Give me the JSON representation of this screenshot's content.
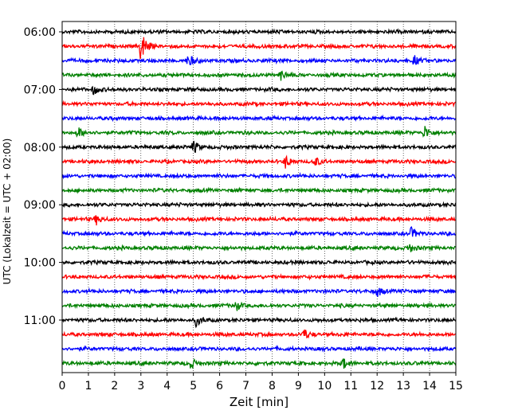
{
  "chart_data": {
    "type": "line",
    "title": "",
    "xlabel": "Zeit  [min]",
    "ylabel": "UTC (Lokalzeit = UTC + 02:00)",
    "xlim": [
      0,
      15
    ],
    "x_ticks": [
      "0",
      "1",
      "2",
      "3",
      "4",
      "5",
      "6",
      "7",
      "8",
      "9",
      "10",
      "11",
      "12",
      "13",
      "14",
      "15"
    ],
    "y_ticks": [
      "06:00",
      "07:00",
      "08:00",
      "09:00",
      "10:00",
      "11:00"
    ],
    "grid": "vertical dotted",
    "row_colors": [
      "#000000",
      "#ff0000",
      "#0000ff",
      "#008000"
    ],
    "rows": [
      "06:00",
      "06:15",
      "06:30",
      "06:45",
      "07:00",
      "07:15",
      "07:30",
      "07:45",
      "08:00",
      "08:15",
      "08:30",
      "08:45",
      "09:00",
      "09:15",
      "09:30",
      "09:45",
      "10:00",
      "10:15",
      "10:30",
      "10:45",
      "11:00",
      "11:15",
      "11:30",
      "11:45"
    ],
    "events": [
      {
        "row": "06:15",
        "minute": 3.0,
        "amplitude": 1.0
      },
      {
        "row": "06:30",
        "minute": 4.8,
        "amplitude": 0.35
      },
      {
        "row": "06:30",
        "minute": 13.4,
        "amplitude": 0.3
      },
      {
        "row": "06:45",
        "minute": 8.3,
        "amplitude": 0.3
      },
      {
        "row": "07:00",
        "minute": 1.2,
        "amplitude": 0.3
      },
      {
        "row": "07:45",
        "minute": 0.6,
        "amplitude": 0.3
      },
      {
        "row": "07:45",
        "minute": 13.8,
        "amplitude": 0.4
      },
      {
        "row": "08:00",
        "minute": 5.0,
        "amplitude": 0.35
      },
      {
        "row": "08:15",
        "minute": 8.5,
        "amplitude": 0.35
      },
      {
        "row": "08:15",
        "minute": 9.6,
        "amplitude": 0.3
      },
      {
        "row": "09:15",
        "minute": 1.3,
        "amplitude": 0.3
      },
      {
        "row": "09:30",
        "minute": 13.3,
        "amplitude": 0.3
      },
      {
        "row": "09:45",
        "minute": 13.2,
        "amplitude": 0.3
      },
      {
        "row": "10:30",
        "minute": 12.0,
        "amplitude": 0.3
      },
      {
        "row": "10:45",
        "minute": 6.6,
        "amplitude": 0.3
      },
      {
        "row": "11:00",
        "minute": 5.1,
        "amplitude": 0.3
      },
      {
        "row": "11:15",
        "minute": 9.2,
        "amplitude": 0.3
      },
      {
        "row": "11:45",
        "minute": 4.9,
        "amplitude": 0.3
      },
      {
        "row": "11:45",
        "minute": 10.7,
        "amplitude": 0.3
      }
    ]
  }
}
